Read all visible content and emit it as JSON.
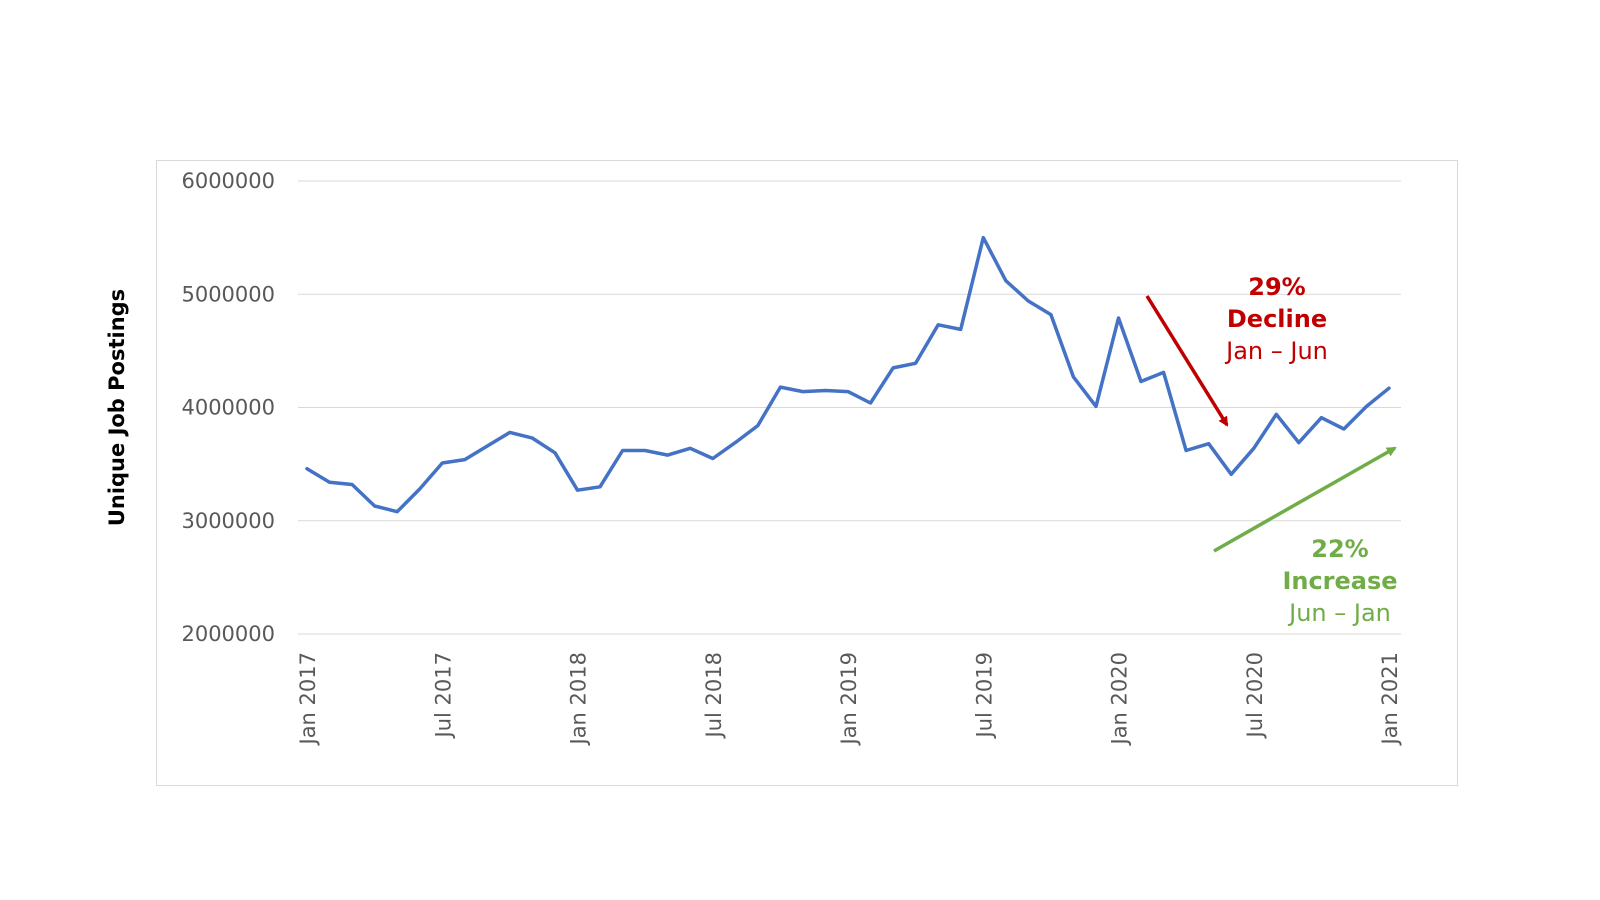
{
  "chart_data": {
    "type": "line",
    "ylabel": "Unique Job Postings",
    "xlabel": "",
    "ylim": [
      2000000,
      6000000
    ],
    "yticks": [
      "6000000",
      "5000000",
      "4000000",
      "3000000",
      "2000000"
    ],
    "xticks": [
      {
        "label": "Jan 2017",
        "index": 0
      },
      {
        "label": "Jul 2017",
        "index": 6
      },
      {
        "label": "Jan 2018",
        "index": 12
      },
      {
        "label": "Jul 2018",
        "index": 18
      },
      {
        "label": "Jan 2019",
        "index": 24
      },
      {
        "label": "Jul 2019",
        "index": 30
      },
      {
        "label": "Jan 2020",
        "index": 36
      },
      {
        "label": "Jul 2020",
        "index": 42
      },
      {
        "label": "Jan 2021",
        "index": 48
      }
    ],
    "grid": true,
    "series": [
      {
        "color": "#4472c4",
        "x": [
          "2017-01",
          "2017-02",
          "2017-03",
          "2017-04",
          "2017-05",
          "2017-06",
          "2017-07",
          "2017-08",
          "2017-09",
          "2017-10",
          "2017-11",
          "2017-12",
          "2018-01",
          "2018-02",
          "2018-03",
          "2018-04",
          "2018-05",
          "2018-06",
          "2018-07",
          "2018-08",
          "2018-09",
          "2018-10",
          "2018-11",
          "2018-12",
          "2019-01",
          "2019-02",
          "2019-03",
          "2019-04",
          "2019-05",
          "2019-06",
          "2019-07",
          "2019-08",
          "2019-09",
          "2019-10",
          "2019-11",
          "2019-12",
          "2020-01",
          "2020-02",
          "2020-03",
          "2020-04",
          "2020-05",
          "2020-06",
          "2020-07",
          "2020-08",
          "2020-09",
          "2020-10",
          "2020-11",
          "2020-12",
          "2021-01"
        ],
        "values": [
          3460000,
          3340000,
          3320000,
          3130000,
          3080000,
          3280000,
          3510000,
          3540000,
          3660000,
          3780000,
          3730000,
          3600000,
          3270000,
          3300000,
          3620000,
          3620000,
          3580000,
          3640000,
          3550000,
          3690000,
          3840000,
          4180000,
          4140000,
          4150000,
          4140000,
          4040000,
          4350000,
          4390000,
          4730000,
          4690000,
          5500000,
          5120000,
          4940000,
          4820000,
          4270000,
          4010000,
          4790000,
          4230000,
          4310000,
          3620000,
          3680000,
          3410000,
          3640000,
          3940000,
          3690000,
          3910000,
          3810000,
          4010000,
          4170000
        ]
      }
    ],
    "annotations": [
      {
        "lines": [
          "29%",
          "Decline",
          "Jan – Jun"
        ],
        "color": "#c00000",
        "arrow": "down"
      },
      {
        "lines": [
          "22%",
          "Increase",
          "Jun – Jan"
        ],
        "color": "#70ad47",
        "arrow": "up"
      }
    ]
  }
}
